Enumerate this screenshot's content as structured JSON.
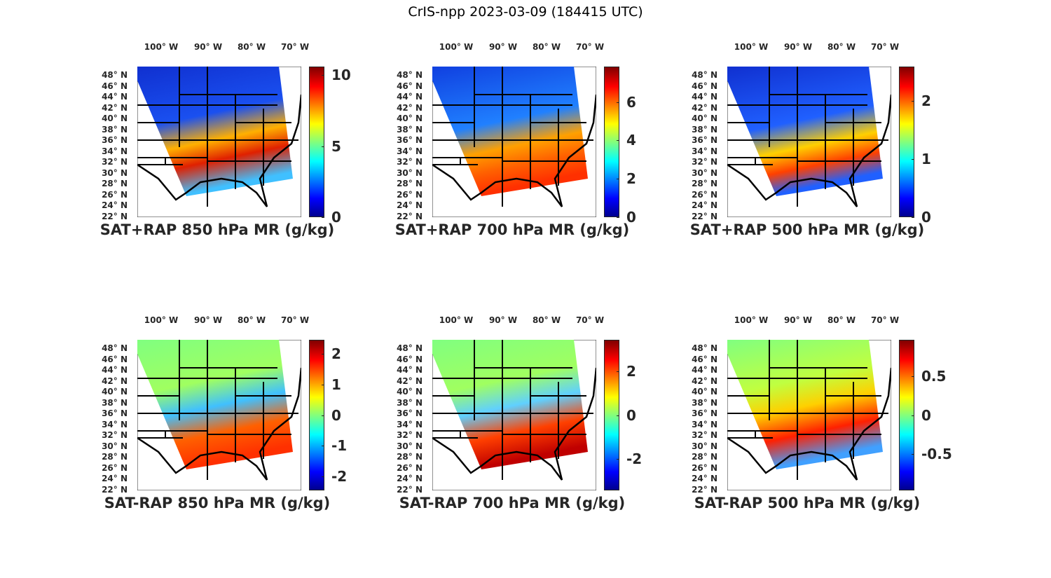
{
  "figure_title": "CrIS-npp 2023-03-09 (184415 UTC)",
  "lon_ticks": [
    "100° W",
    "90° W",
    "80° W",
    "70° W"
  ],
  "lat_ticks": [
    "48° N",
    "46° N",
    "44° N",
    "42° N",
    "40° N",
    "38° N",
    "36° N",
    "34° N",
    "32° N",
    "30° N",
    "28° N",
    "26° N",
    "24° N",
    "22° N"
  ],
  "colormap": "jet",
  "chart_data": [
    {
      "type": "heatmap",
      "title": "SAT+RAP 850 hPa MR (g/kg)",
      "clim": [
        0,
        10.6
      ],
      "colorbar_ticks": [
        "0",
        "5",
        "10"
      ],
      "colorbar_tick_values": [
        0,
        5,
        10
      ]
    },
    {
      "type": "heatmap",
      "title": "SAT+RAP 700 hPa MR (g/kg)",
      "clim": [
        0,
        7.85
      ],
      "colorbar_ticks": [
        "0",
        "2",
        "4",
        "6"
      ],
      "colorbar_tick_values": [
        0,
        2,
        4,
        6
      ]
    },
    {
      "type": "heatmap",
      "title": "SAT+RAP 500 hPa MR (g/kg)",
      "clim": [
        0,
        2.59
      ],
      "colorbar_ticks": [
        "0",
        "1",
        "2"
      ],
      "colorbar_tick_values": [
        0,
        1,
        2
      ]
    },
    {
      "type": "heatmap",
      "title": "SAT-RAP 850 hPa MR (g/kg)",
      "clim": [
        -2.47,
        2.47
      ],
      "colorbar_ticks": [
        "-2",
        "-1",
        "0",
        "1",
        "2"
      ],
      "colorbar_tick_values": [
        -2,
        -1,
        0,
        1,
        2
      ]
    },
    {
      "type": "heatmap",
      "title": "SAT-RAP 700 hPa MR (g/kg)",
      "clim": [
        -3.44,
        3.44
      ],
      "colorbar_ticks": [
        "-2",
        "0",
        "2"
      ],
      "colorbar_tick_values": [
        -2,
        0,
        2
      ]
    },
    {
      "type": "heatmap",
      "title": "SAT-RAP 500 hPa MR (g/kg)",
      "clim": [
        -0.97,
        0.97
      ],
      "colorbar_ticks": [
        "-0.5",
        "0",
        "0.5"
      ],
      "colorbar_tick_values": [
        -0.5,
        0,
        0.5
      ]
    }
  ]
}
